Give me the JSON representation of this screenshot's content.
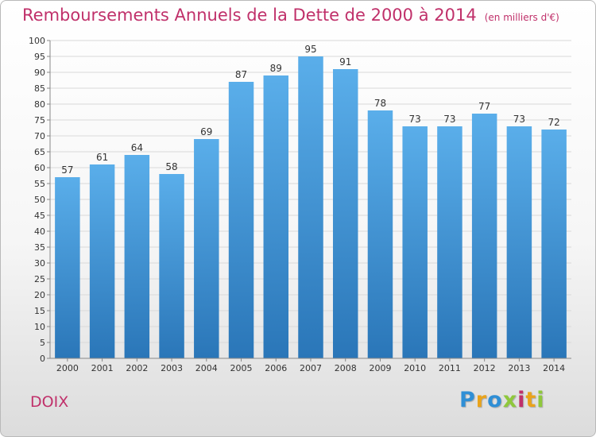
{
  "header": {
    "title": "Remboursements Annuels de la Dette de 2000 à 2014",
    "unit": "(en milliers d'€)"
  },
  "footer": {
    "commune": "DOIX",
    "logo": [
      "P",
      "r",
      "o",
      "x",
      "i",
      "t",
      "i"
    ],
    "logo_colors": [
      "#2f8fd6",
      "#e9a31b",
      "#2f8fd6",
      "#8fc83c",
      "#c0306a",
      "#e9a31b",
      "#8fc83c"
    ]
  },
  "chart_data": {
    "type": "bar",
    "title": "Remboursements Annuels de la Dette de 2000 à 2014",
    "xlabel": "",
    "ylabel": "",
    "categories": [
      "2000",
      "2001",
      "2002",
      "2003",
      "2004",
      "2005",
      "2006",
      "2007",
      "2008",
      "2009",
      "2010",
      "2011",
      "2012",
      "2013",
      "2014"
    ],
    "values": [
      57,
      61,
      64,
      58,
      69,
      87,
      89,
      95,
      91,
      78,
      73,
      73,
      77,
      73,
      72
    ],
    "ylim": [
      0,
      100
    ],
    "yticks": [
      0,
      5,
      10,
      15,
      20,
      25,
      30,
      35,
      40,
      45,
      50,
      55,
      60,
      65,
      70,
      75,
      80,
      85,
      90,
      95,
      100
    ],
    "grid": true,
    "colors": {
      "bar_top": "#5aaeea",
      "bar_bottom": "#2a76b8",
      "grid": "#d9d9d9",
      "axis": "#888888"
    }
  }
}
